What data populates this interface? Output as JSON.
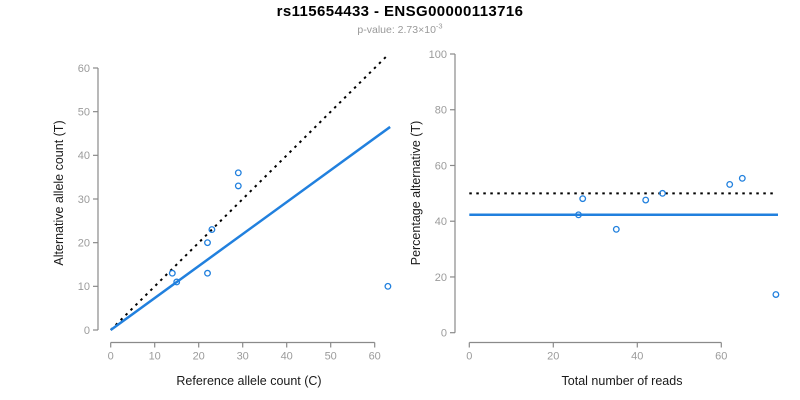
{
  "figure": {
    "title": "rs115654433 - ENSG00000113716",
    "subtitle_prefix": "p-value: 2.73×10",
    "subtitle_exponent": "-3",
    "colors": {
      "accent_blue": "#2180DE",
      "line_black": "#000000",
      "axis_gray": "#8a8a8a",
      "tick_label_gray": "#9b9b9b",
      "axis_title_black": "#1a1a1a",
      "subtitle_gray": "#999999"
    }
  },
  "chart_data": [
    {
      "type": "scatter",
      "panel": "left",
      "xlabel": "Reference allele count (C)",
      "ylabel": "Alternative allele count (T)",
      "xlim": [
        0,
        63
      ],
      "ylim": [
        0,
        63
      ],
      "xticks": [
        0,
        10,
        20,
        30,
        40,
        50,
        60
      ],
      "yticks": [
        0,
        10,
        20,
        30,
        40,
        50,
        60
      ],
      "grid": false,
      "legend": "none",
      "point_style": "open-circle",
      "points": [
        {
          "x": 29,
          "y": 36
        },
        {
          "x": 29,
          "y": 33
        },
        {
          "x": 23,
          "y": 23
        },
        {
          "x": 22,
          "y": 20
        },
        {
          "x": 22,
          "y": 13
        },
        {
          "x": 15,
          "y": 11
        },
        {
          "x": 14,
          "y": 13
        },
        {
          "x": 63,
          "y": 10
        }
      ],
      "lines": [
        {
          "name": "identity-line",
          "style": "dotted",
          "color": "#000000",
          "x1": 0,
          "y1": 0,
          "x2": 63,
          "y2": 63
        },
        {
          "name": "fit-line",
          "style": "solid",
          "color": "#2180DE",
          "x1": 0,
          "y1": 0,
          "x2": 63.5,
          "y2": 46.5
        }
      ]
    },
    {
      "type": "scatter",
      "panel": "right",
      "xlabel": "Total number of reads",
      "ylabel": "Percentage alternative (T)",
      "xlim": [
        0,
        76
      ],
      "ylim": [
        0,
        100
      ],
      "xticks": [
        0,
        20,
        40,
        60
      ],
      "yticks": [
        0,
        20,
        40,
        60,
        80,
        100
      ],
      "grid": false,
      "legend": "none",
      "point_style": "open-circle",
      "points": [
        {
          "x": 27,
          "y": 48.1
        },
        {
          "x": 26,
          "y": 42.3
        },
        {
          "x": 35,
          "y": 37.1
        },
        {
          "x": 42,
          "y": 47.6
        },
        {
          "x": 46,
          "y": 50
        },
        {
          "x": 62,
          "y": 53.2
        },
        {
          "x": 65,
          "y": 55.4
        },
        {
          "x": 73,
          "y": 13.7
        }
      ],
      "lines": [
        {
          "name": "expected-50pct-line",
          "style": "dotted",
          "color": "#000000",
          "x1": 0,
          "y1": 50,
          "x2": 72.5,
          "y2": 50
        },
        {
          "name": "mean-pct-line",
          "style": "solid",
          "color": "#2180DE",
          "x1": 0,
          "y1": 42.3,
          "x2": 73.5,
          "y2": 42.3
        }
      ]
    }
  ]
}
